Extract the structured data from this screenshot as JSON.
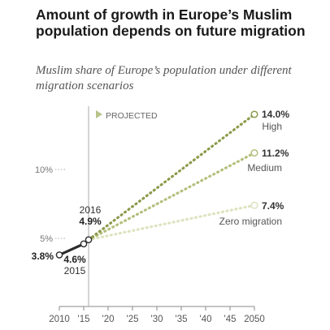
{
  "header": {
    "title": "Amount of growth in Europe’s Muslim population depends on future migration",
    "subtitle": "Muslim share of Europe’s population under different migration scenarios"
  },
  "labels": {
    "projected": "PROJECTED",
    "year_2016": "2016",
    "val_2016": "4.9%",
    "val_2010": "3.8%",
    "val_2015": "4.6%",
    "year_2015": "2015",
    "high_value": "14.0%",
    "high_name": "High",
    "medium_value": "11.2%",
    "medium_name": "Medium",
    "zero_value": "7.4%",
    "zero_name": "Zero migration"
  },
  "colors": {
    "historical": "#2b2b2b",
    "high": "#8b9b4b",
    "medium": "#b4c07c",
    "zero": "#dde3bf",
    "axis": "#999999",
    "projected_marker": "#b9c48c"
  },
  "chart_data": {
    "type": "line",
    "title": "Amount of growth in Europe’s Muslim population depends on future migration",
    "subtitle": "Muslim share of Europe’s population under different migration scenarios",
    "xlim": [
      2010,
      2050
    ],
    "ylim": [
      0,
      17
    ],
    "x_ticks": [
      2010,
      2015,
      2020,
      2025,
      2030,
      2035,
      2040,
      2045,
      2050
    ],
    "x_tick_labels": [
      "2010",
      "'15",
      "'20",
      "'25",
      "'30",
      "'35",
      "'40",
      "'45",
      "2050"
    ],
    "y_ticks": [
      5,
      10
    ],
    "y_tick_labels": [
      "5%",
      "10%"
    ],
    "projection_start": 2016,
    "series": [
      {
        "name": "",
        "x": [
          2010,
          2015,
          2016
        ],
        "values": [
          3.8,
          4.6,
          4.9
        ]
      },
      {
        "name": "High",
        "x": [
          2016,
          2050
        ],
        "values": [
          4.9,
          14.0
        ]
      },
      {
        "name": "Medium",
        "x": [
          2016,
          2050
        ],
        "values": [
          4.9,
          11.2
        ]
      },
      {
        "name": "Zero migration",
        "x": [
          2016,
          2050
        ],
        "values": [
          4.9,
          7.4
        ]
      }
    ]
  }
}
